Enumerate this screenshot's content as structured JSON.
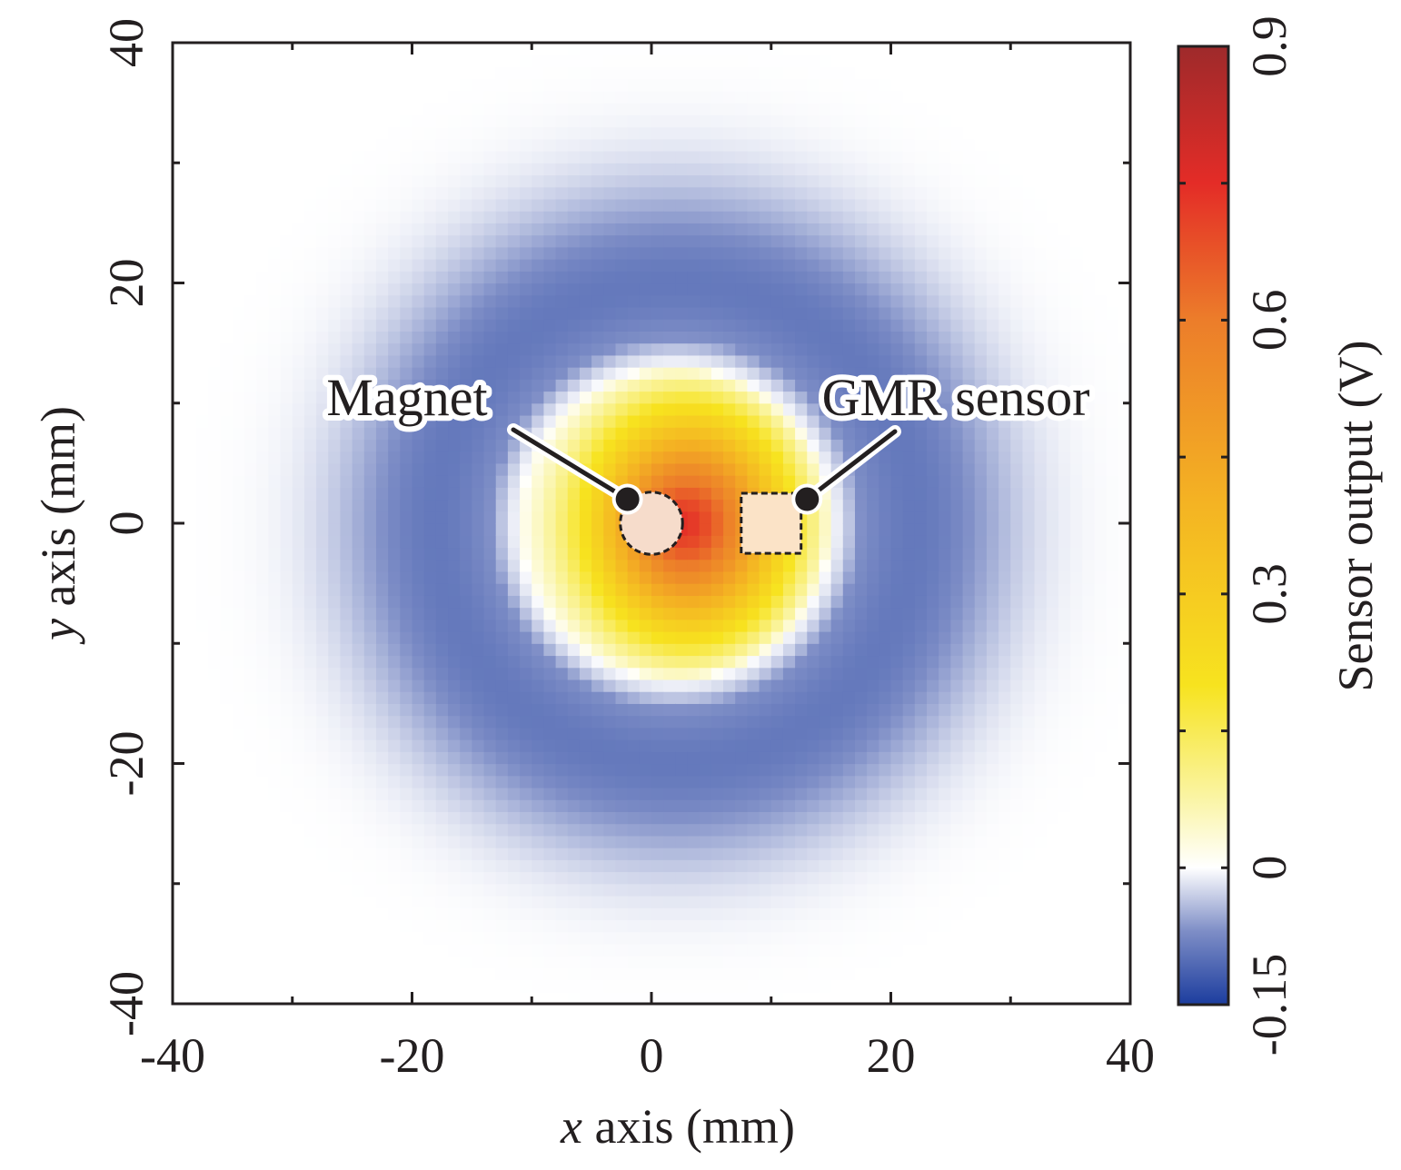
{
  "chart_data": {
    "type": "heatmap",
    "x": {
      "label_var": "x",
      "label_rest": " axis (mm)",
      "range": [
        -40,
        40
      ],
      "ticks": [
        -40,
        -20,
        0,
        20,
        40
      ],
      "minor_ticks": [
        -30,
        -10,
        10,
        30
      ]
    },
    "y": {
      "label_var": "y",
      "label_rest": " axis (mm)",
      "range": [
        -40,
        40
      ],
      "ticks": [
        -40,
        -20,
        0,
        20,
        40
      ],
      "minor_ticks": [
        -30,
        -10,
        10,
        30
      ]
    },
    "colorbar": {
      "label": "Sensor output (V)",
      "range": [
        -0.15,
        0.9
      ],
      "ticks": [
        -0.15,
        0,
        0.3,
        0.6,
        0.9
      ],
      "tick_labels": [
        "-0.15",
        "0",
        "0.3",
        "0.6",
        "0.9"
      ],
      "colors": [
        {
          "v": -0.15,
          "c": "#1c3d9e"
        },
        {
          "v": -0.07,
          "c": "#7d8dc6"
        },
        {
          "v": 0.0,
          "c": "#ffffff"
        },
        {
          "v": 0.08,
          "c": "#faf4a0"
        },
        {
          "v": 0.2,
          "c": "#f7e31f"
        },
        {
          "v": 0.4,
          "c": "#f4b323"
        },
        {
          "v": 0.6,
          "c": "#ec7d2a"
        },
        {
          "v": 0.75,
          "c": "#e42c27"
        },
        {
          "v": 0.9,
          "c": "#9e2a2b"
        }
      ]
    },
    "field_model": {
      "grid_step_mm": 1,
      "center_mm": [
        2,
        0
      ],
      "zero_radius_mm": 13,
      "positive_peak_V": 0.78,
      "peak_offset_mm": [
        4,
        0
      ],
      "negative_peak_V": -0.09,
      "negative_ring_radius_mm": 20,
      "negative_ring_width_mm": 8.5
    },
    "annotations": [
      {
        "label": "Magnet",
        "marker_mm": [
          -2,
          2
        ],
        "shape": "circle",
        "center_mm": [
          0,
          0
        ],
        "radius_mm": 2.6
      },
      {
        "label": "GMR sensor",
        "marker_mm": [
          13,
          2
        ],
        "shape": "square",
        "center_mm": [
          10,
          0
        ],
        "half_size_mm": 2.5
      }
    ]
  }
}
